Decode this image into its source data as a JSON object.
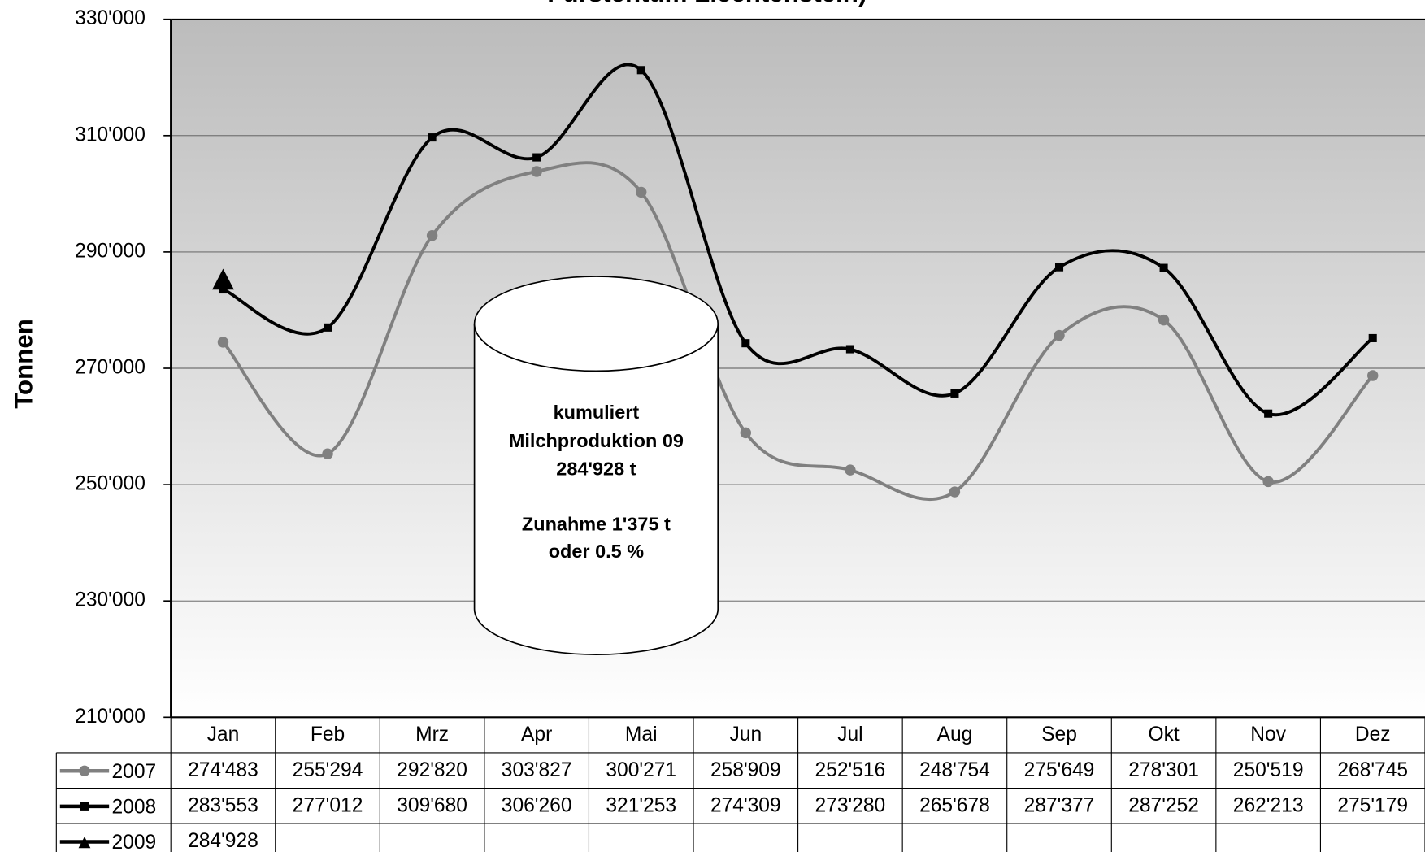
{
  "chart_data": {
    "type": "line",
    "title": "Fürstentum Liechtenstein)",
    "y_label": "Tonnen",
    "categories": [
      "Jan",
      "Feb",
      "Mrz",
      "Apr",
      "Mai",
      "Jun",
      "Jul",
      "Aug",
      "Sep",
      "Okt",
      "Nov",
      "Dez"
    ],
    "series": [
      {
        "name": "2007",
        "color": "#808080",
        "marker": "circle",
        "values": [
          274483,
          255294,
          292820,
          303827,
          300271,
          258909,
          252516,
          248754,
          275649,
          278301,
          250519,
          268745
        ],
        "value_labels": [
          "274'483",
          "255'294",
          "292'820",
          "303'827",
          "300'271",
          "258'909",
          "252'516",
          "248'754",
          "275'649",
          "278'301",
          "250'519",
          "268'745"
        ]
      },
      {
        "name": "2008",
        "color": "#000000",
        "marker": "square",
        "values": [
          283553,
          277012,
          309680,
          306260,
          321253,
          274309,
          273280,
          265678,
          287377,
          287252,
          262213,
          275179
        ],
        "value_labels": [
          "283'553",
          "277'012",
          "309'680",
          "306'260",
          "321'253",
          "274'309",
          "273'280",
          "265'678",
          "287'377",
          "287'252",
          "262'213",
          "275'179"
        ]
      },
      {
        "name": "2009",
        "color": "#000000",
        "marker": "triangle",
        "values": [
          284928,
          null,
          null,
          null,
          null,
          null,
          null,
          null,
          null,
          null,
          null,
          null
        ],
        "value_labels": [
          "284'928",
          null,
          null,
          null,
          null,
          null,
          null,
          null,
          null,
          null,
          null,
          null
        ]
      }
    ],
    "ylim": [
      210000,
      330000
    ],
    "yticks": [
      {
        "value": 210000,
        "label": "210'000"
      },
      {
        "value": 230000,
        "label": "230'000"
      },
      {
        "value": 250000,
        "label": "250'000"
      },
      {
        "value": 270000,
        "label": "270'000"
      },
      {
        "value": 290000,
        "label": "290'000"
      },
      {
        "value": 310000,
        "label": "310'000"
      },
      {
        "value": 330000,
        "label": "330'000"
      }
    ],
    "grid": true,
    "annotation": [
      "kumuliert",
      "Milchproduktion 09",
      "284'928 t",
      "Zunahme 1'375 t",
      "oder 0.5 %"
    ]
  }
}
